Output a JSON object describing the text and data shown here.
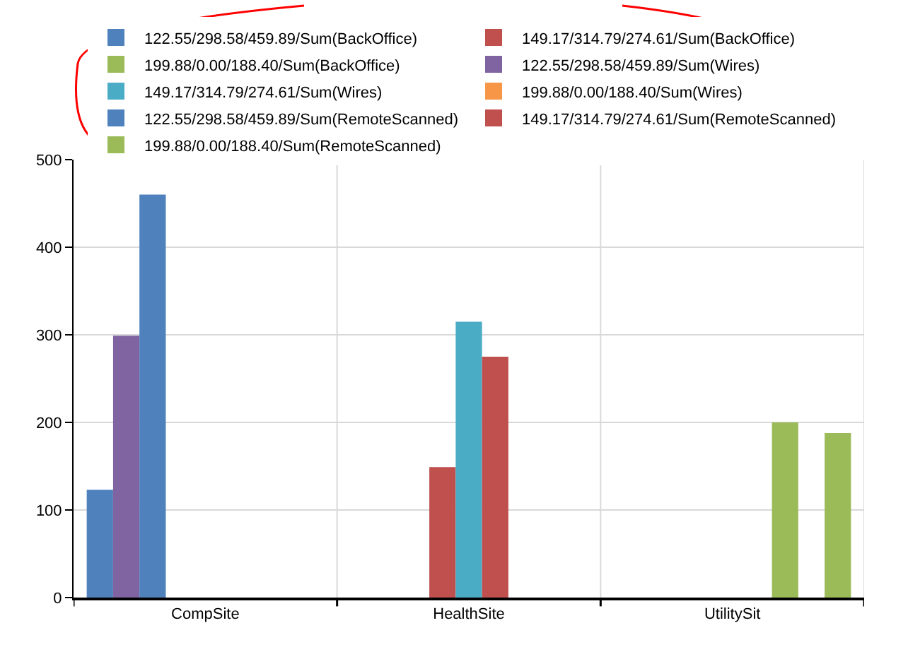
{
  "chart_data": {
    "type": "bar",
    "categories": [
      "CompSite",
      "HealthSite",
      "UtilitySit"
    ],
    "series": [
      {
        "name": "122.55/298.58/459.89/Sum(BackOffice)",
        "color": "#4f81bd",
        "values": [
          123,
          null,
          null
        ]
      },
      {
        "name": "149.17/314.79/274.61/Sum(BackOffice)",
        "color": "#c0504d",
        "values": [
          null,
          149,
          null
        ]
      },
      {
        "name": "199.88/0.00/188.40/Sum(BackOffice)",
        "color": "#9bbb59",
        "values": [
          null,
          null,
          200
        ]
      },
      {
        "name": "122.55/298.58/459.89/Sum(Wires)",
        "color": "#8064a2",
        "values": [
          299,
          null,
          null
        ]
      },
      {
        "name": "149.17/314.79/274.61/Sum(Wires)",
        "color": "#4bacc6",
        "values": [
          null,
          315,
          null
        ]
      },
      {
        "name": "199.88/0.00/188.40/Sum(Wires)",
        "color": "#f79646",
        "values": [
          null,
          null,
          0
        ]
      },
      {
        "name": "122.55/298.58/459.89/Sum(RemoteScanned)",
        "color": "#4f81bd",
        "values": [
          460,
          null,
          null
        ]
      },
      {
        "name": "149.17/314.79/274.61/Sum(RemoteScanned)",
        "color": "#c0504d",
        "values": [
          null,
          275,
          null
        ]
      },
      {
        "name": "199.88/0.00/188.40/Sum(RemoteScanned)",
        "color": "#9bbb59",
        "values": [
          null,
          null,
          188
        ]
      }
    ],
    "ylim": [
      0,
      500
    ],
    "yticks": [
      0,
      100,
      200,
      300,
      400,
      500
    ],
    "grid": true,
    "legend": "top"
  }
}
